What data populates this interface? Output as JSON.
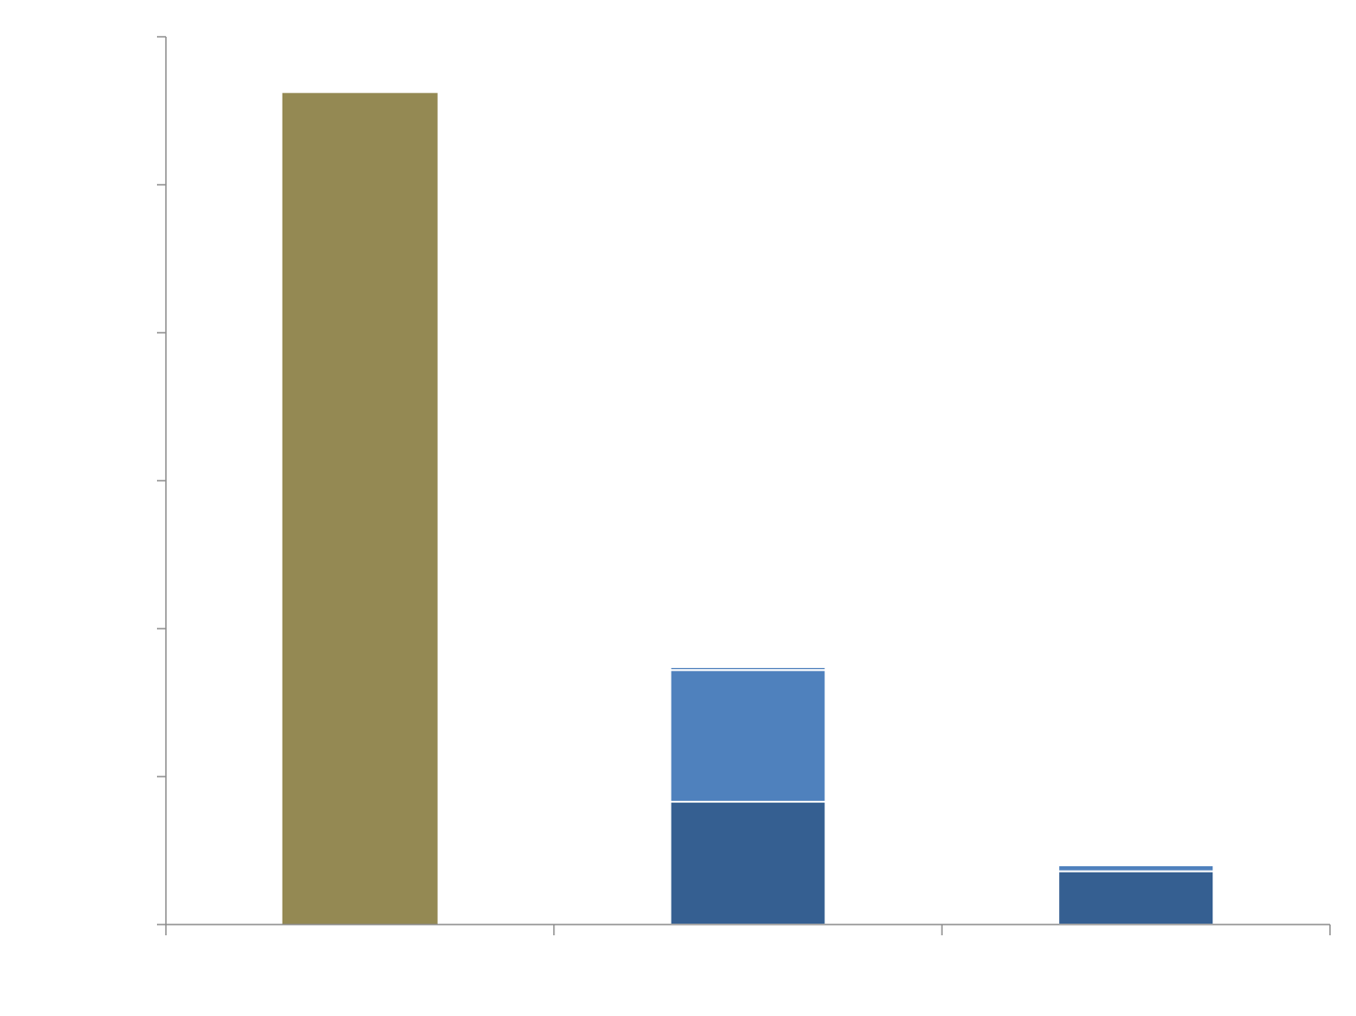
{
  "chart_data": {
    "type": "bar",
    "stacked": true,
    "title": "",
    "xlabel": "",
    "ylabel": "",
    "ylim": [
      0,
      6
    ],
    "yticks": [
      0,
      1,
      2,
      3,
      4,
      5,
      6
    ],
    "tick_labels_visible": false,
    "categories": [
      "",
      "",
      ""
    ],
    "series": [
      {
        "values": [
          5.62,
          0,
          0
        ],
        "color": "#948953"
      },
      {
        "values": [
          0,
          0.83,
          0.36
        ],
        "color": "#355f91"
      },
      {
        "values": [
          0,
          0.89,
          0.04
        ],
        "color": "#4f81bd"
      },
      {
        "values": [
          0,
          0.02,
          0
        ],
        "color": "#4f81bd"
      }
    ],
    "grid": false,
    "legend": "none"
  }
}
